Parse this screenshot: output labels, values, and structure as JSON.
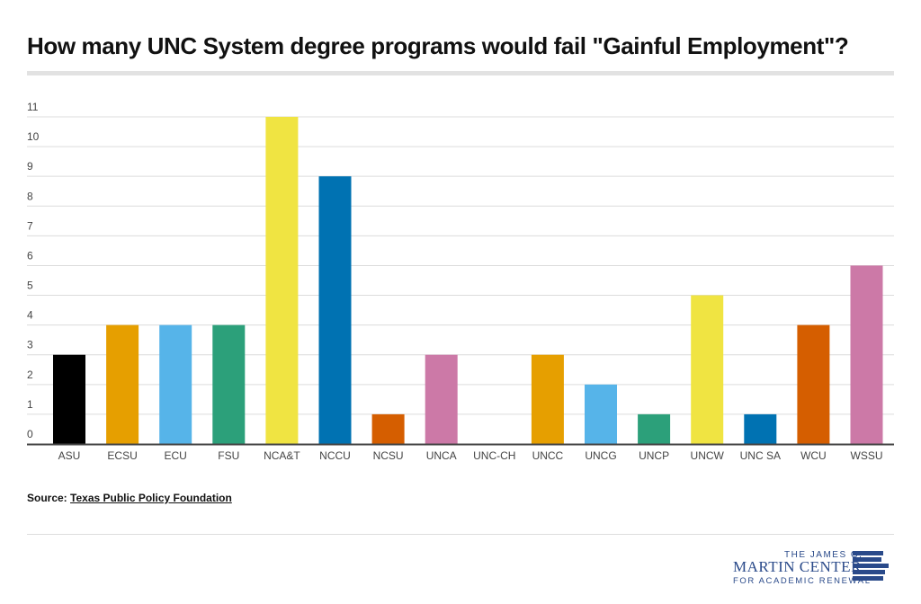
{
  "chart_data": {
    "type": "bar",
    "title": "How many UNC System degree programs would fail \"Gainful Employment\"?",
    "categories": [
      "ASU",
      "ECSU",
      "ECU",
      "FSU",
      "NCA&T",
      "NCCU",
      "NCSU",
      "UNCA",
      "UNC-CH",
      "UNCC",
      "UNCG",
      "UNCP",
      "UNCW",
      "UNC SA",
      "WCU",
      "WSSU"
    ],
    "values": [
      3,
      4,
      4,
      4,
      11,
      9,
      1,
      3,
      0,
      3,
      2,
      1,
      5,
      1,
      4,
      6
    ],
    "colors": [
      "#000000",
      "#E69F00",
      "#56B4E9",
      "#2CA07A",
      "#F0E442",
      "#0072B2",
      "#D55E00",
      "#CC79A7",
      "#000000",
      "#E69F00",
      "#56B4E9",
      "#2CA07A",
      "#F0E442",
      "#0072B2",
      "#D55E00",
      "#CC79A7"
    ],
    "ylim": [
      0,
      11
    ],
    "yticks": [
      0,
      1,
      2,
      3,
      4,
      5,
      6,
      7,
      8,
      9,
      10,
      11
    ],
    "xlabel": "",
    "ylabel": "",
    "grid": true
  },
  "source": {
    "label": "Source:",
    "link": "Texas Public Policy Foundation"
  },
  "logo": {
    "line1": "THE JAMES G.",
    "line2": "MARTIN CENTER",
    "line3": "FOR ACADEMIC RENEWAL"
  }
}
